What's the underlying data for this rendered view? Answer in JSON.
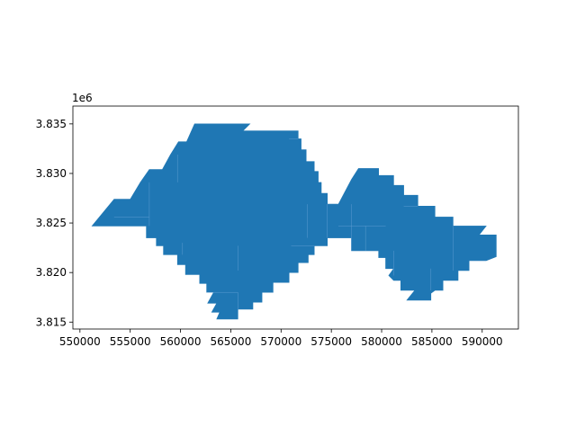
{
  "map": {
    "fill_color": "#1f77b4",
    "seam_color": "#5b9bd0",
    "frame_color": "#000000",
    "y_offset_label": "1e6",
    "x_range": [
      549300,
      593600
    ],
    "y_range": [
      3814300,
      3836800
    ],
    "x_ticks": [
      550000,
      555000,
      560000,
      565000,
      570000,
      575000,
      580000,
      585000,
      590000
    ],
    "x_tick_labels": [
      "550000",
      "555000",
      "560000",
      "565000",
      "570000",
      "575000",
      "580000",
      "585000",
      "590000"
    ],
    "y_ticks": [
      3815000,
      3820000,
      3825000,
      3830000,
      3835000
    ],
    "y_tick_labels": [
      "3.815",
      "3.820",
      "3.825",
      "3.830",
      "3.835"
    ],
    "outline": [
      [
        551200,
        3824700
      ],
      [
        553400,
        3827400
      ],
      [
        555000,
        3827400
      ],
      [
        556000,
        3829100
      ],
      [
        556900,
        3830400
      ],
      [
        558200,
        3830400
      ],
      [
        559000,
        3831900
      ],
      [
        559800,
        3833200
      ],
      [
        560600,
        3833200
      ],
      [
        561400,
        3835000
      ],
      [
        566900,
        3835000
      ],
      [
        566200,
        3834300
      ],
      [
        571700,
        3834300
      ],
      [
        571700,
        3833500
      ],
      [
        572000,
        3833500
      ],
      [
        572000,
        3832400
      ],
      [
        572500,
        3832400
      ],
      [
        572500,
        3831200
      ],
      [
        573300,
        3831200
      ],
      [
        573300,
        3830200
      ],
      [
        573700,
        3830200
      ],
      [
        573700,
        3829100
      ],
      [
        574000,
        3829100
      ],
      [
        574000,
        3828000
      ],
      [
        574600,
        3828000
      ],
      [
        574600,
        3826900
      ],
      [
        575700,
        3826900
      ],
      [
        577000,
        3829400
      ],
      [
        577700,
        3830500
      ],
      [
        579700,
        3830500
      ],
      [
        579700,
        3829800
      ],
      [
        581200,
        3829800
      ],
      [
        581200,
        3828800
      ],
      [
        582200,
        3828800
      ],
      [
        582200,
        3827800
      ],
      [
        583600,
        3827800
      ],
      [
        583600,
        3826700
      ],
      [
        585300,
        3826700
      ],
      [
        585300,
        3825600
      ],
      [
        587100,
        3825600
      ],
      [
        587100,
        3824700
      ],
      [
        590400,
        3824700
      ],
      [
        589700,
        3823800
      ],
      [
        591400,
        3823800
      ],
      [
        591400,
        3821600
      ],
      [
        590400,
        3821200
      ],
      [
        588700,
        3821200
      ],
      [
        588700,
        3820200
      ],
      [
        587600,
        3820200
      ],
      [
        587600,
        3819200
      ],
      [
        586100,
        3819200
      ],
      [
        586100,
        3818200
      ],
      [
        585300,
        3818200
      ],
      [
        584900,
        3817900
      ],
      [
        584900,
        3817200
      ],
      [
        582500,
        3817200
      ],
      [
        583300,
        3818200
      ],
      [
        581900,
        3818200
      ],
      [
        581900,
        3819200
      ],
      [
        581200,
        3819200
      ],
      [
        580700,
        3819700
      ],
      [
        581200,
        3820400
      ],
      [
        580400,
        3820400
      ],
      [
        580400,
        3821500
      ],
      [
        579700,
        3821500
      ],
      [
        579700,
        3822200
      ],
      [
        577000,
        3822200
      ],
      [
        577000,
        3823500
      ],
      [
        574600,
        3823500
      ],
      [
        574600,
        3822700
      ],
      [
        573300,
        3822700
      ],
      [
        573300,
        3821800
      ],
      [
        572700,
        3821800
      ],
      [
        572700,
        3821000
      ],
      [
        571700,
        3821000
      ],
      [
        571700,
        3820000
      ],
      [
        570800,
        3820000
      ],
      [
        570800,
        3819000
      ],
      [
        569200,
        3819000
      ],
      [
        569200,
        3818000
      ],
      [
        568100,
        3818000
      ],
      [
        568100,
        3817000
      ],
      [
        567200,
        3817000
      ],
      [
        567200,
        3816300
      ],
      [
        565700,
        3816300
      ],
      [
        565700,
        3815300
      ],
      [
        563600,
        3815300
      ],
      [
        563900,
        3816000
      ],
      [
        563100,
        3816000
      ],
      [
        563600,
        3816900
      ],
      [
        562700,
        3816900
      ],
      [
        563300,
        3818000
      ],
      [
        562600,
        3818000
      ],
      [
        562600,
        3818900
      ],
      [
        561900,
        3818900
      ],
      [
        561900,
        3819800
      ],
      [
        560500,
        3819800
      ],
      [
        560500,
        3820800
      ],
      [
        559700,
        3820800
      ],
      [
        559700,
        3821800
      ],
      [
        558300,
        3821800
      ],
      [
        558300,
        3822700
      ],
      [
        557600,
        3822700
      ],
      [
        557600,
        3823500
      ],
      [
        556600,
        3823500
      ],
      [
        556600,
        3824700
      ]
    ],
    "seams": [
      [
        [
          560200,
          3821800
        ],
        [
          560200,
          3823000
        ]
      ],
      [
        [
          572600,
          3823500
        ],
        [
          572600,
          3826900
        ]
      ],
      [
        [
          574600,
          3823500
        ],
        [
          574600,
          3826900
        ]
      ],
      [
        [
          577000,
          3822200
        ],
        [
          577000,
          3826900
        ]
      ],
      [
        [
          578400,
          3822200
        ],
        [
          578400,
          3824700
        ]
      ],
      [
        [
          581200,
          3819700
        ],
        [
          581200,
          3822200
        ]
      ],
      [
        [
          584900,
          3818200
        ],
        [
          584900,
          3820400
        ]
      ],
      [
        [
          587100,
          3820200
        ],
        [
          587100,
          3824700
        ]
      ],
      [
        [
          559700,
          3829100
        ],
        [
          559700,
          3831900
        ]
      ],
      [
        [
          556900,
          3824700
        ],
        [
          556900,
          3829100
        ]
      ],
      [
        [
          565700,
          3818000
        ],
        [
          565700,
          3816300
        ]
      ],
      [
        [
          571000,
          3822700
        ],
        [
          573300,
          3822700
        ]
      ],
      [
        [
          575700,
          3824700
        ],
        [
          580400,
          3824700
        ]
      ],
      [
        [
          582200,
          3826700
        ],
        [
          583600,
          3826700
        ]
      ],
      [
        [
          570800,
          3833500
        ],
        [
          571700,
          3833500
        ]
      ],
      [
        [
          553400,
          3825600
        ],
        [
          556900,
          3825600
        ]
      ],
      [
        [
          562600,
          3818000
        ],
        [
          565700,
          3818000
        ]
      ],
      [
        [
          565700,
          3820200
        ],
        [
          565700,
          3822700
        ]
      ]
    ]
  }
}
